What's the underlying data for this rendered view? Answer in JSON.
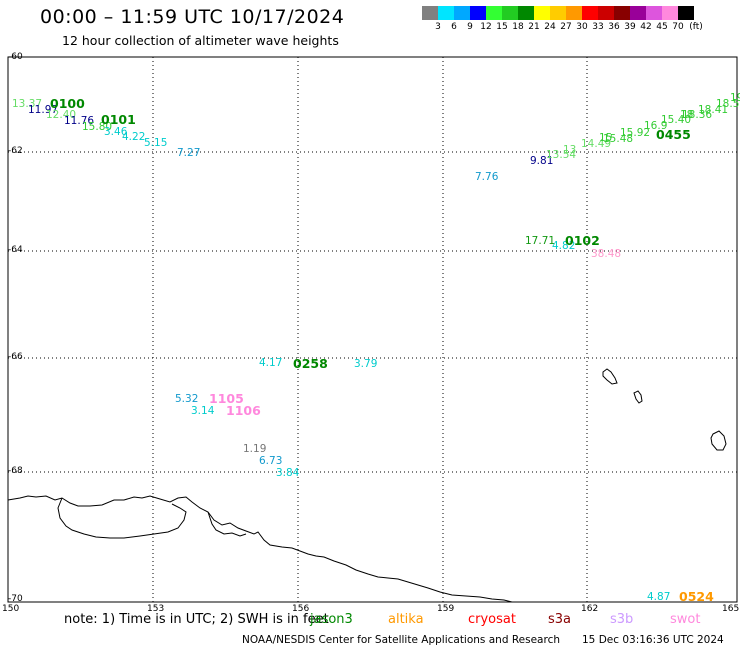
{
  "title": "00:00 – 11:59 UTC 10/17/2024",
  "subtitle": "12 hour collection of altimeter wave heights",
  "color_scale": {
    "unit": "(ft)",
    "colors": [
      "#808080",
      "#00e5ff",
      "#00a8ff",
      "#0000ff",
      "#33ff33",
      "#22cc22",
      "#008800",
      "#ffff00",
      "#ffcc00",
      "#ff9900",
      "#ff0000",
      "#cc0000",
      "#880000",
      "#990099",
      "#dd55dd",
      "#ff88dd",
      "#000000"
    ],
    "labels": [
      "3",
      "6",
      "9",
      "12",
      "15",
      "18",
      "21",
      "24",
      "27",
      "30",
      "33",
      "36",
      "39",
      "42",
      "45",
      "70"
    ]
  },
  "lat_labels": [
    "-60",
    "-62",
    "-64",
    "-66",
    "-68",
    "-70"
  ],
  "lon_labels": [
    "150",
    "153",
    "156",
    "159",
    "162",
    "165"
  ],
  "wave_heights": [
    {
      "text": "13.37",
      "color": "#66dd66"
    },
    {
      "text": "11.97",
      "color": "#000088"
    },
    {
      "text": "12.40",
      "color": "#66dd66"
    },
    {
      "text": "11.76",
      "color": "#000088"
    },
    {
      "text": "15.80",
      "color": "#33cc33"
    },
    {
      "text": "3.46",
      "color": "#00cccc"
    },
    {
      "text": "4.22",
      "color": "#00cccc"
    },
    {
      "text": "5.15",
      "color": "#00cccc"
    },
    {
      "text": "7.27",
      "color": "#1199cc"
    },
    {
      "text": "7.76",
      "color": "#1199cc"
    },
    {
      "text": "9.81",
      "color": "#000088"
    },
    {
      "text": "13.54",
      "color": "#66dd66"
    },
    {
      "text": "13",
      "color": "#66dd66"
    },
    {
      "text": "14.49",
      "color": "#66dd66"
    },
    {
      "text": "15",
      "color": "#33cc33"
    },
    {
      "text": "15.48",
      "color": "#33cc33"
    },
    {
      "text": "15.92",
      "color": "#33cc33"
    },
    {
      "text": "16.9",
      "color": "#33cc33"
    },
    {
      "text": "15.40",
      "color": "#33cc33"
    },
    {
      "text": "18",
      "color": "#33cc33"
    },
    {
      "text": "18.36",
      "color": "#33cc33"
    },
    {
      "text": "18.41",
      "color": "#33cc33"
    },
    {
      "text": "18.55",
      "color": "#33cc33"
    },
    {
      "text": "19",
      "color": "#33cc33"
    },
    {
      "text": "17.71",
      "color": "#119911"
    },
    {
      "text": "4.82",
      "color": "#00cccc"
    },
    {
      "text": "38.48",
      "color": "#ff99cc"
    },
    {
      "text": "4.17",
      "color": "#00cccc"
    },
    {
      "text": "3.79",
      "color": "#00cccc"
    },
    {
      "text": "5.32",
      "color": "#1199cc"
    },
    {
      "text": "3.14",
      "color": "#00cccc"
    },
    {
      "text": "1.19",
      "color": "#777777"
    },
    {
      "text": "6.73",
      "color": "#1199cc"
    },
    {
      "text": "3.84",
      "color": "#00cccc"
    },
    {
      "text": "4.87",
      "color": "#00cccc"
    }
  ],
  "pass_labels": [
    {
      "text": "0100",
      "color": "#008800"
    },
    {
      "text": "0101",
      "color": "#008800"
    },
    {
      "text": "0455",
      "color": "#008800"
    },
    {
      "text": "0102",
      "color": "#008800"
    },
    {
      "text": "0258",
      "color": "#008800"
    },
    {
      "text": "1105",
      "color": "#ff88dd"
    },
    {
      "text": "1106",
      "color": "#ff88dd"
    },
    {
      "text": "0524",
      "color": "#ff9900"
    }
  ],
  "note": "note: 1) Time is in UTC; 2) SWH is in feet",
  "satellites": [
    {
      "text": "jason3",
      "color": "#008800"
    },
    {
      "text": "altika",
      "color": "#ff9900"
    },
    {
      "text": "cryosat",
      "color": "#ff0000"
    },
    {
      "text": "s3a",
      "color": "#880000"
    },
    {
      "text": "s3b",
      "color": "#cc99ff"
    },
    {
      "text": "swot",
      "color": "#ff88dd"
    }
  ],
  "credit": "NOAA/NESDIS Center for Satellite Applications and Research",
  "timestamp": "15 Dec 03:16:36 UTC 2024"
}
